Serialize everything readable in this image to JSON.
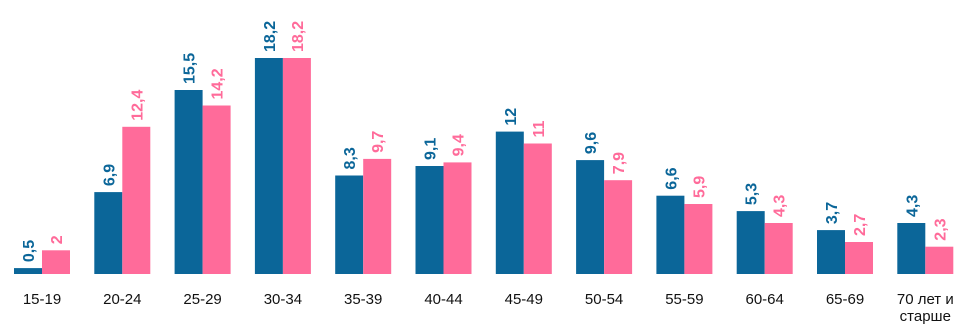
{
  "chart_data": {
    "type": "bar",
    "title": "",
    "xlabel": "",
    "ylabel": "",
    "ylim": [
      0,
      18.2
    ],
    "grid": false,
    "legend": "none",
    "categories": [
      "15-19",
      "20-24",
      "25-29",
      "30-34",
      "35-39",
      "40-44",
      "45-49",
      "50-54",
      "55-59",
      "60-64",
      "65-69",
      "70 лет и старше"
    ],
    "category_label_lines": [
      [
        "15-19"
      ],
      [
        "20-24"
      ],
      [
        "25-29"
      ],
      [
        "30-34"
      ],
      [
        "35-39"
      ],
      [
        "40-44"
      ],
      [
        "45-49"
      ],
      [
        "50-54"
      ],
      [
        "55-59"
      ],
      [
        "60-64"
      ],
      [
        "65-69"
      ],
      [
        "70 лет и",
        "старше"
      ]
    ],
    "series": [
      {
        "color": "#0b6699",
        "values": [
          0.5,
          6.9,
          15.5,
          18.2,
          8.3,
          9.1,
          12,
          9.6,
          6.6,
          5.3,
          3.7,
          4.3
        ],
        "labels": [
          "0,5",
          "6,9",
          "15,5",
          "18,2",
          "8,3",
          "9,1",
          "12",
          "9,6",
          "6,6",
          "5,3",
          "3,7",
          "4,3"
        ]
      },
      {
        "color": "#ff6b9a",
        "values": [
          2,
          12.4,
          14.2,
          18.2,
          9.7,
          9.4,
          11,
          7.9,
          5.9,
          4.3,
          2.7,
          2.3
        ],
        "labels": [
          "2",
          "12,4",
          "14,2",
          "18,2",
          "9,7",
          "9,4",
          "11",
          "7,9",
          "5,9",
          "4,3",
          "2,7",
          "2,3"
        ]
      }
    ]
  }
}
